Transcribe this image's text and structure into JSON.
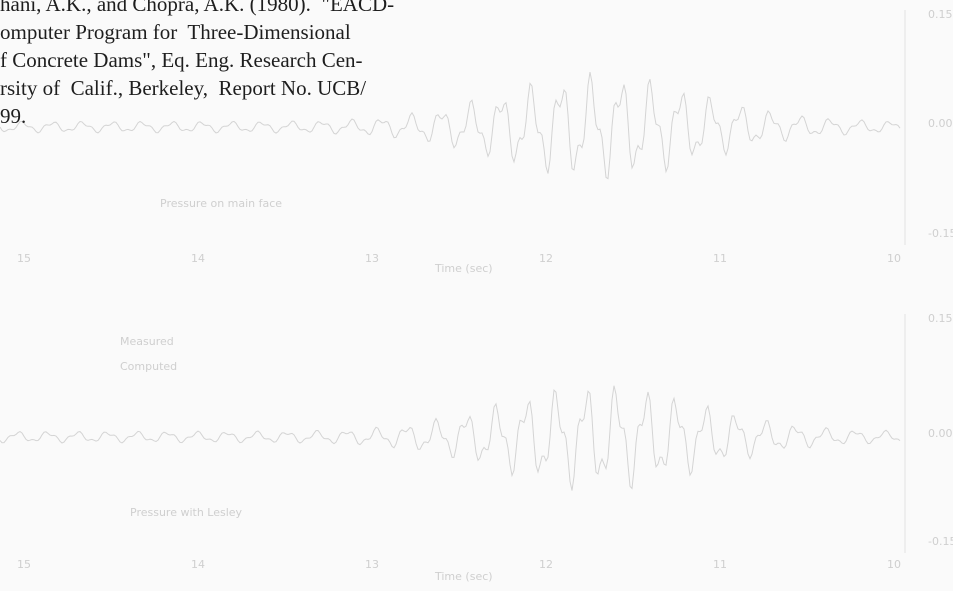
{
  "text_lines": [
    "hani, A.K., and Chopra, A.K. (1980).  \"EACD-",
    "omputer Program for  Three-Dimensional",
    "f Concrete Dams\", Eq. Eng. Research Cen-",
    "rsity of  Calif., Berkeley,  Report No. UCB/",
    "99."
  ],
  "faint_figures": [
    {
      "y_ticks": [
        "0.15",
        "0.00",
        "-0.15"
      ],
      "x_ticks": [
        "15",
        "14",
        "13",
        "12",
        "11",
        "10"
      ],
      "x_label": "Time (sec)",
      "caption": "Pressure on main face"
    },
    {
      "y_ticks": [
        "0.15",
        "0.00",
        "-0.15"
      ],
      "x_ticks": [
        "15",
        "14",
        "13",
        "12",
        "11",
        "10"
      ],
      "x_label": "Time (sec)",
      "caption": "Pressure with Lesley",
      "legend": [
        "Measured",
        "Computed"
      ]
    }
  ]
}
